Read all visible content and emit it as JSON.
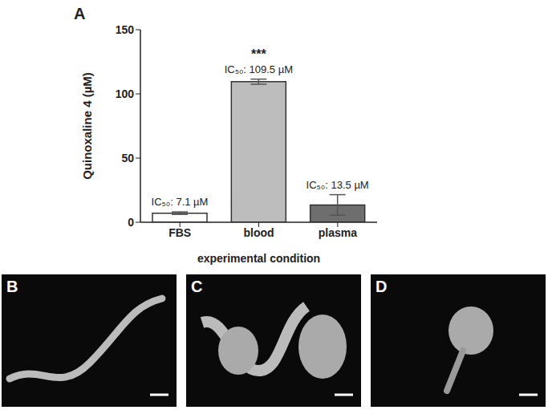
{
  "chart_data": {
    "type": "bar",
    "label": "A",
    "categories": [
      "FBS",
      "blood",
      "plasma"
    ],
    "values": [
      7.1,
      109.5,
      13.5
    ],
    "value_labels": [
      "IC₅₀: 7.1 µM",
      "IC₅₀: 109.5 µM",
      "IC₅₀: 13.5 µM"
    ],
    "error": [
      1,
      2,
      8
    ],
    "colors": [
      "#ffffff",
      "#bdbdbd",
      "#6e6e6e"
    ],
    "data_labels": true,
    "x_label": "experimental condition",
    "y_label": "Quinoxaline 4 (µM)",
    "ylim": [
      0,
      150
    ],
    "yticks": [
      0,
      50,
      100,
      150
    ],
    "grid": false,
    "annotations": [
      {
        "category": "blood",
        "text": "***"
      }
    ]
  },
  "images": [
    {
      "label": "B"
    },
    {
      "label": "C"
    },
    {
      "label": "D"
    }
  ]
}
